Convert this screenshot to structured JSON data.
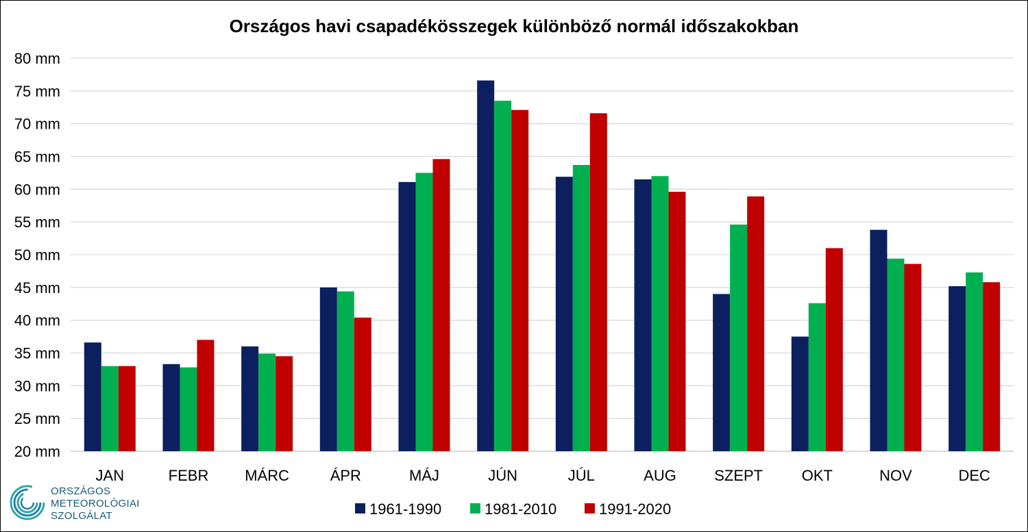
{
  "chart_data": {
    "type": "bar",
    "title": "Országos havi csapadékösszegek különböző normál időszakokban",
    "unit": "mm",
    "ylim": [
      20,
      80
    ],
    "yticks": [
      20,
      25,
      30,
      35,
      40,
      45,
      50,
      55,
      60,
      65,
      70,
      75,
      80
    ],
    "grid": true,
    "legend_position": "bottom",
    "categories": [
      "JAN",
      "FEBR",
      "MÁRC",
      "ÁPR",
      "MÁJ",
      "JÚN",
      "JÚL",
      "AUG",
      "SZEPT",
      "OKT",
      "NOV",
      "DEC"
    ],
    "series": [
      {
        "name": "1961-1990",
        "color": "#0c1f5e",
        "values": [
          36.6,
          33.3,
          36.0,
          45.0,
          61.1,
          76.6,
          61.9,
          61.5,
          44.0,
          37.5,
          53.8,
          45.2
        ]
      },
      {
        "name": "1981-2010",
        "color": "#00b050",
        "values": [
          33.0,
          32.8,
          34.9,
          44.4,
          62.5,
          73.5,
          63.7,
          62.0,
          54.6,
          42.6,
          49.4,
          47.3
        ]
      },
      {
        "name": "1991-2020",
        "color": "#c00000",
        "values": [
          33.0,
          37.0,
          34.5,
          40.4,
          64.6,
          72.1,
          71.6,
          59.6,
          58.9,
          51.0,
          48.6,
          45.8
        ]
      }
    ]
  },
  "logo": {
    "icon": "swirl-logo-icon",
    "lines": [
      "ORSZÁGOS",
      "METEOROLÓGIAI",
      "SZOLGÁLAT"
    ]
  }
}
